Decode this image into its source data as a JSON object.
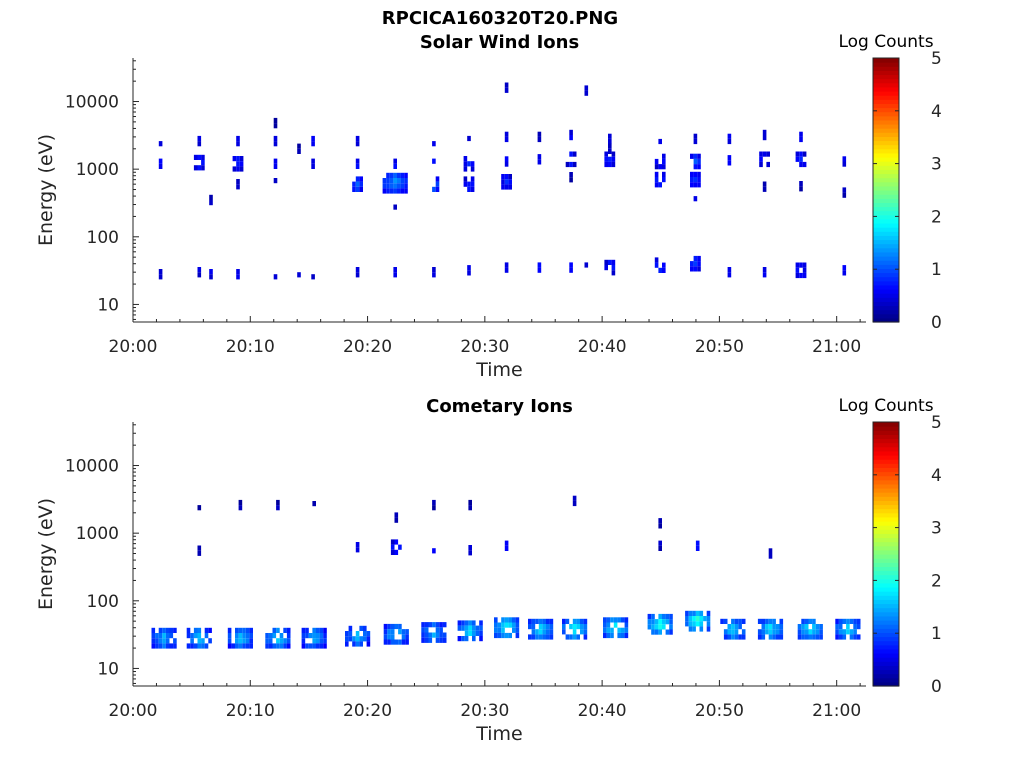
{
  "figure": {
    "title": "RPCICA160320T20.PNG"
  },
  "chart_data": [
    {
      "type": "heatmap",
      "title": "Solar Wind Ions",
      "xlabel": "Time",
      "ylabel": "Energy (eV)",
      "x_ticks": [
        "20:00",
        "20:10",
        "20:20",
        "20:30",
        "20:40",
        "20:50",
        "21:00"
      ],
      "y_ticks": [
        "10",
        "100",
        "1000",
        "10000"
      ],
      "y_scale": "log",
      "xlim_minutes": [
        0,
        62.5
      ],
      "ylim": [
        5.5,
        44000
      ],
      "colorbar": {
        "label": "Log Counts",
        "range": [
          0,
          5
        ],
        "ticks": [
          "0",
          "1",
          "2",
          "3",
          "4",
          "5"
        ],
        "colormap": "jet"
      },
      "grid": false,
      "sweeps": [
        {
          "minute": 2.2,
          "features": [
            [
              2600,
              0.6
            ],
            [
              1200,
              0.7
            ],
            [
              28,
              0.4
            ]
          ]
        },
        {
          "minute": 5.5,
          "features": [
            [
              2600,
              0.5
            ],
            [
              1250,
              0.8
            ],
            [
              30,
              0.5
            ]
          ]
        },
        {
          "minute": 6.5,
          "features": [
            [
              350,
              0.3
            ],
            [
              28,
              0.6
            ]
          ]
        },
        {
          "minute": 8.8,
          "features": [
            [
              2600,
              0.6
            ],
            [
              1200,
              0.8
            ],
            [
              600,
              0.4
            ],
            [
              28,
              0.6
            ]
          ]
        },
        {
          "minute": 12.0,
          "features": [
            [
              2600,
              0.6
            ],
            [
              1200,
              0.7
            ],
            [
              620,
              0.3
            ],
            [
              4800,
              0.3
            ],
            [
              28,
              0.6
            ]
          ]
        },
        {
          "minute": 14.0,
          "features": [
            [
              2000,
              0.3
            ],
            [
              30,
              0.4
            ]
          ]
        },
        {
          "minute": 15.2,
          "features": [
            [
              2600,
              0.6
            ],
            [
              1200,
              0.7
            ],
            [
              28,
              0.5
            ]
          ]
        },
        {
          "minute": 19.0,
          "features": [
            [
              2600,
              0.6
            ],
            [
              1200,
              0.7
            ],
            [
              600,
              1.2
            ],
            [
              30,
              0.5
            ]
          ]
        },
        {
          "minute": 22.2,
          "features": [
            [
              2600,
              0.6
            ],
            [
              1200,
              0.7
            ],
            [
              620,
              1.4
            ],
            [
              300,
              0.3
            ],
            [
              30,
              0.5
            ]
          ]
        },
        {
          "minute": 25.5,
          "features": [
            [
              2600,
              0.6
            ],
            [
              1200,
              0.7
            ],
            [
              600,
              1.2
            ],
            [
              30,
              0.5
            ]
          ]
        },
        {
          "minute": 28.5,
          "features": [
            [
              2600,
              0.5
            ],
            [
              1200,
              0.8
            ],
            [
              600,
              0.8
            ],
            [
              32,
              0.6
            ]
          ]
        },
        {
          "minute": 31.7,
          "features": [
            [
              16000,
              0.4
            ],
            [
              3000,
              0.5
            ],
            [
              1300,
              0.6
            ],
            [
              650,
              0.8
            ],
            [
              35,
              0.6
            ]
          ]
        },
        {
          "minute": 34.5,
          "features": [
            [
              3000,
              0.4
            ],
            [
              1400,
              0.7
            ],
            [
              35,
              0.7
            ]
          ]
        },
        {
          "minute": 37.2,
          "features": [
            [
              3200,
              0.6
            ],
            [
              1400,
              0.8
            ],
            [
              760,
              0.3
            ],
            [
              35,
              0.7
            ]
          ]
        },
        {
          "minute": 38.5,
          "features": [
            [
              14500,
              0.4
            ],
            [
              35,
              0.6
            ]
          ]
        },
        {
          "minute": 40.5,
          "features": [
            [
              2800,
              0.6
            ],
            [
              1400,
              0.8
            ],
            [
              2000,
              0.3
            ],
            [
              35,
              0.8
            ]
          ]
        },
        {
          "minute": 44.8,
          "features": [
            [
              2800,
              0.6
            ],
            [
              1300,
              0.8
            ],
            [
              700,
              0.9
            ],
            [
              500,
              0.7
            ],
            [
              38,
              0.9
            ]
          ]
        },
        {
          "minute": 47.8,
          "features": [
            [
              2800,
              0.6
            ],
            [
              1300,
              1.0
            ],
            [
              700,
              0.9
            ],
            [
              400,
              0.7
            ],
            [
              40,
              0.9
            ]
          ]
        },
        {
          "minute": 50.7,
          "features": [
            [
              2800,
              0.6
            ],
            [
              1350,
              0.7
            ],
            [
              30,
              0.6
            ]
          ]
        },
        {
          "minute": 53.7,
          "features": [
            [
              3200,
              0.6
            ],
            [
              1400,
              0.8
            ],
            [
              550,
              0.4
            ],
            [
              30,
              0.7
            ]
          ]
        },
        {
          "minute": 56.8,
          "features": [
            [
              3000,
              0.6
            ],
            [
              1400,
              0.8
            ],
            [
              560,
              0.3
            ],
            [
              32,
              0.8
            ]
          ]
        },
        {
          "minute": 60.5,
          "features": [
            [
              1300,
              0.6
            ],
            [
              450,
              0.4
            ],
            [
              32,
              0.7
            ]
          ]
        }
      ]
    },
    {
      "type": "heatmap",
      "title": "Cometary Ions",
      "xlabel": "Time",
      "ylabel": "Energy (eV)",
      "x_ticks": [
        "20:00",
        "20:10",
        "20:20",
        "20:30",
        "20:40",
        "20:50",
        "21:00"
      ],
      "y_ticks": [
        "10",
        "100",
        "1000",
        "10000"
      ],
      "y_scale": "log",
      "xlim_minutes": [
        0,
        62.5
      ],
      "ylim": [
        5.5,
        44000
      ],
      "colorbar": {
        "label": "Log Counts",
        "range": [
          0,
          5
        ],
        "ticks": [
          "0",
          "1",
          "2",
          "3",
          "4",
          "5"
        ],
        "colormap": "jet"
      },
      "grid": false,
      "sweeps": [
        {
          "minute": 2.5,
          "features": [
            [
              28,
              1.6
            ]
          ]
        },
        {
          "minute": 5.5,
          "features": [
            [
              2600,
              0.3
            ],
            [
              550,
              0.3
            ],
            [
              28,
              1.7
            ]
          ]
        },
        {
          "minute": 9.0,
          "features": [
            [
              2600,
              0.3
            ],
            [
              28,
              1.7
            ]
          ]
        },
        {
          "minute": 12.2,
          "features": [
            [
              2600,
              0.3
            ],
            [
              28,
              1.8
            ]
          ]
        },
        {
          "minute": 15.3,
          "features": [
            [
              2500,
              0.4
            ],
            [
              28,
              1.6
            ]
          ]
        },
        {
          "minute": 19.0,
          "features": [
            [
              620,
              0.7
            ],
            [
              30,
              1.6
            ]
          ]
        },
        {
          "minute": 22.3,
          "features": [
            [
              1700,
              0.3
            ],
            [
              620,
              0.8
            ],
            [
              32,
              1.7
            ]
          ]
        },
        {
          "minute": 25.5,
          "features": [
            [
              2600,
              0.3
            ],
            [
              600,
              0.6
            ],
            [
              34,
              1.6
            ]
          ]
        },
        {
          "minute": 28.6,
          "features": [
            [
              2600,
              0.3
            ],
            [
              560,
              0.4
            ],
            [
              36,
              1.8
            ]
          ]
        },
        {
          "minute": 31.7,
          "features": [
            [
              650,
              0.6
            ],
            [
              40,
              2.0
            ]
          ]
        },
        {
          "minute": 34.6,
          "features": [
            [
              38,
              1.8
            ]
          ]
        },
        {
          "minute": 37.5,
          "features": [
            [
              3000,
              0.3
            ],
            [
              38,
              2.0
            ]
          ]
        },
        {
          "minute": 41.0,
          "features": [
            [
              40,
              2.0
            ]
          ]
        },
        {
          "minute": 44.8,
          "features": [
            [
              1400,
              0.3
            ],
            [
              650,
              0.4
            ],
            [
              45,
              2.1
            ]
          ]
        },
        {
          "minute": 48.0,
          "features": [
            [
              650,
              0.7
            ],
            [
              50,
              2.2
            ]
          ]
        },
        {
          "minute": 51.0,
          "features": [
            [
              38,
              1.8
            ]
          ]
        },
        {
          "minute": 54.2,
          "features": [
            [
              500,
              0.3
            ],
            [
              38,
              1.9
            ]
          ]
        },
        {
          "minute": 57.6,
          "features": [
            [
              38,
              1.9
            ]
          ]
        },
        {
          "minute": 60.8,
          "features": [
            [
              38,
              1.8
            ]
          ]
        }
      ]
    }
  ]
}
